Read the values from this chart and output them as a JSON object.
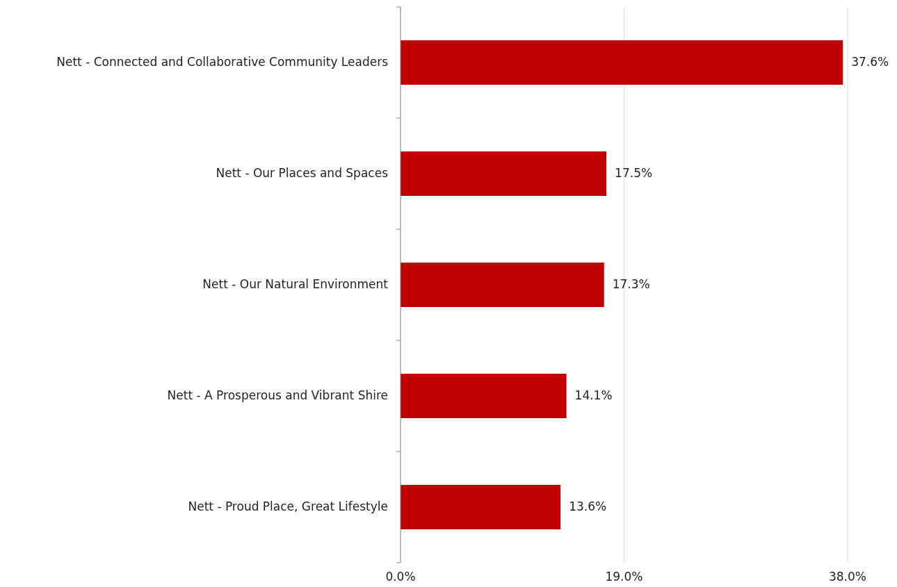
{
  "chart_data": {
    "type": "bar",
    "orientation": "horizontal",
    "categories": [
      "Nett - Connected and Collaborative Community Leaders",
      "Nett - Our Places and Spaces",
      "Nett - Our Natural Environment",
      "Nett - A Prosperous and Vibrant Shire",
      "Nett - Proud Place, Great Lifestyle"
    ],
    "values": [
      37.6,
      17.5,
      17.3,
      14.1,
      13.6
    ],
    "value_labels": [
      "37.6%",
      "17.5%",
      "17.3%",
      "14.1%",
      "13.6%"
    ],
    "color": "#c00000",
    "xlim": [
      0,
      38
    ],
    "xticks": [
      {
        "value": 0,
        "label": "0.0%"
      },
      {
        "value": 19,
        "label": "19.0%"
      },
      {
        "value": 38,
        "label": "38.0%"
      }
    ],
    "grid": "x"
  }
}
